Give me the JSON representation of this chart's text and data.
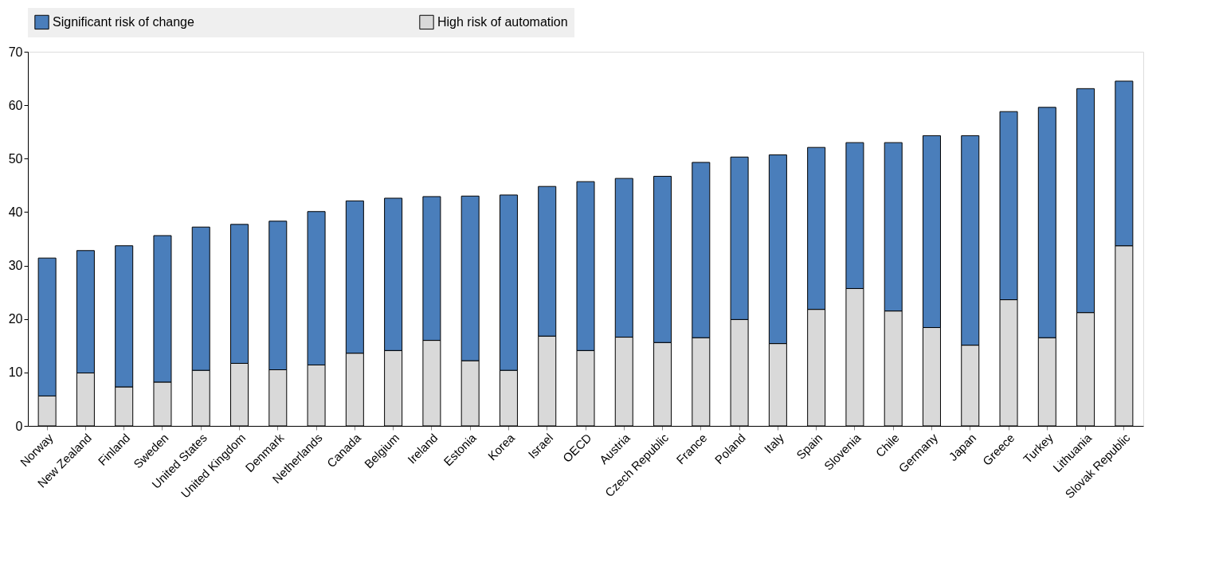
{
  "chart_data": {
    "type": "bar",
    "stacked": true,
    "categories": [
      "Norway",
      "New Zealand",
      "Finland",
      "Sweden",
      "United States",
      "United Kingdom",
      "Denmark",
      "Netherlands",
      "Canada",
      "Belgium",
      "Ireland",
      "Estonia",
      "Korea",
      "Israel",
      "OECD",
      "Austria",
      "Czech Republic",
      "France",
      "Poland",
      "Italy",
      "Spain",
      "Slovenia",
      "Chile",
      "Germany",
      "Japan",
      "Greece",
      "Turkey",
      "Lithuania",
      "Slovak Republic"
    ],
    "series": [
      {
        "name": "High risk of automation",
        "color": "#d9d9d9",
        "values": [
          5.6,
          9.9,
          7.3,
          8.2,
          10.4,
          11.7,
          10.5,
          11.4,
          13.6,
          14.1,
          16.0,
          12.2,
          10.4,
          16.8,
          14.1,
          16.6,
          15.6,
          16.5,
          19.9,
          15.4,
          21.8,
          25.7,
          21.5,
          18.4,
          15.1,
          23.6,
          16.5,
          21.2,
          33.7
        ]
      },
      {
        "name": "Significant risk of change",
        "color": "#4a7ebb",
        "values": [
          25.8,
          22.9,
          26.4,
          27.4,
          26.8,
          26.0,
          27.8,
          28.7,
          28.5,
          28.5,
          26.9,
          30.8,
          32.8,
          28.0,
          31.6,
          29.7,
          31.1,
          32.8,
          30.4,
          35.3,
          30.3,
          27.3,
          31.5,
          35.9,
          39.2,
          35.2,
          43.1,
          41.9,
          30.8
        ]
      }
    ],
    "ylim": [
      0,
      70
    ],
    "yticks": [
      0,
      10,
      20,
      30,
      40,
      50,
      60,
      70
    ],
    "grid": false,
    "legend": "top"
  }
}
